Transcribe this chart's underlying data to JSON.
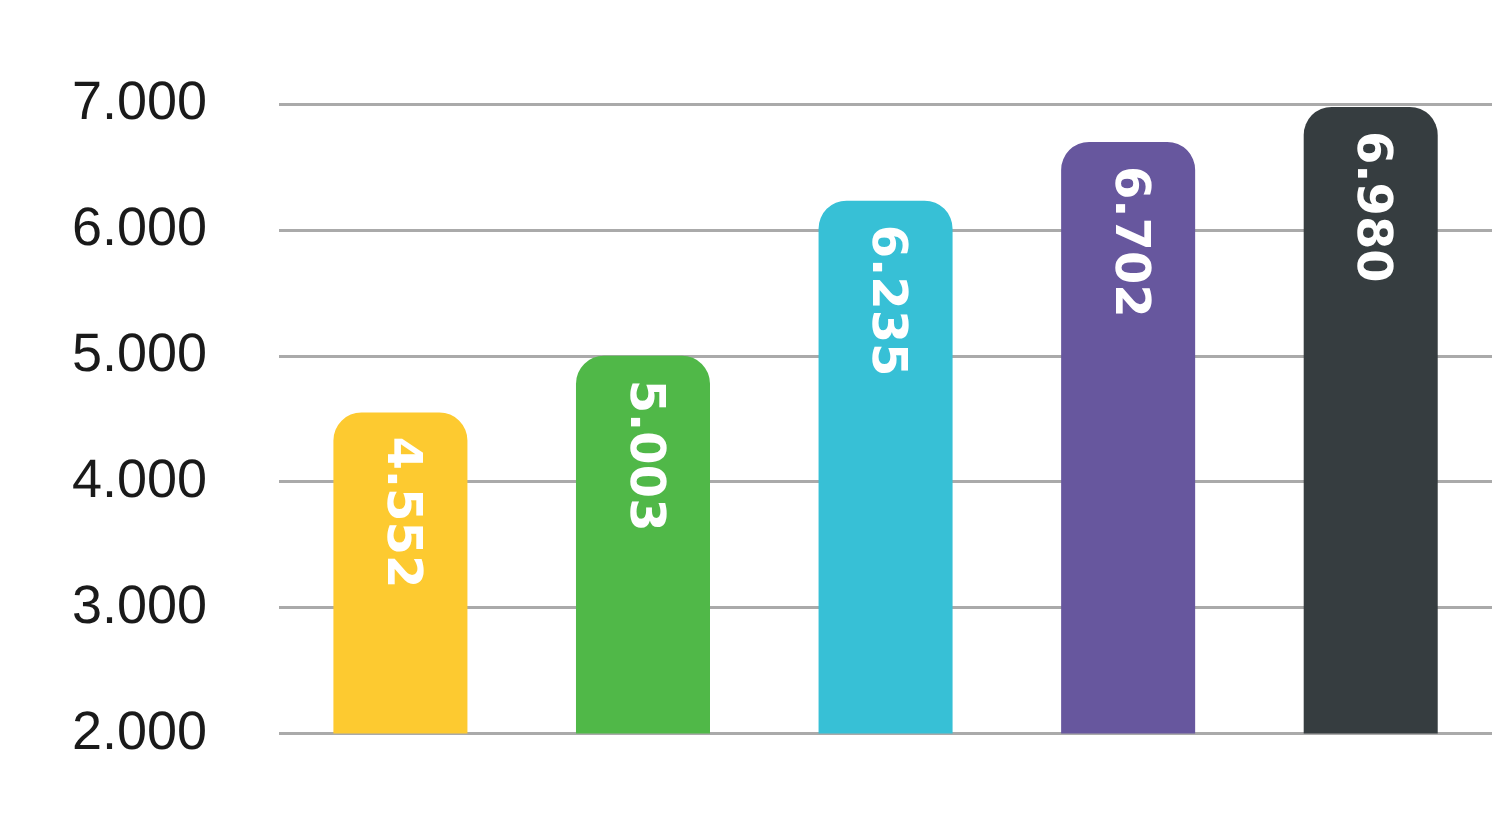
{
  "chart_data": {
    "type": "bar",
    "categories": [
      null,
      null,
      null,
      null,
      null
    ],
    "values": [
      4552,
      5003,
      6235,
      6702,
      6980
    ],
    "colors": [
      "#fdca30",
      "#50b848",
      "#37c0d6",
      "#67579e",
      "#363d40"
    ],
    "value_labels": [
      "4.552",
      "5.003",
      "6.235",
      "6.702",
      "6.980"
    ],
    "ylim": [
      2000,
      7000
    ],
    "yticks": [
      {
        "value": 2000,
        "label": "2.000"
      },
      {
        "value": 3000,
        "label": "3.000"
      },
      {
        "value": 4000,
        "label": "4.000"
      },
      {
        "value": 5000,
        "label": "5.000"
      },
      {
        "value": 6000,
        "label": "6.000"
      },
      {
        "value": 7000,
        "label": "7.000"
      }
    ],
    "grid": "y"
  }
}
